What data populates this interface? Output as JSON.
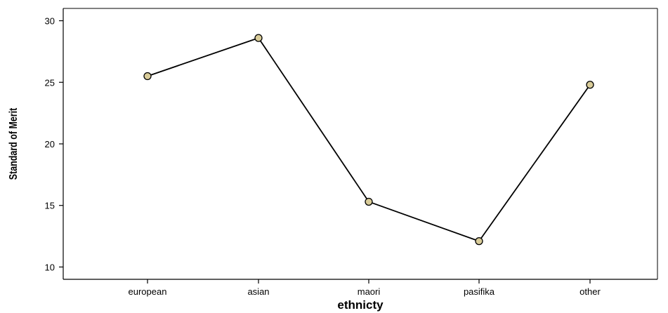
{
  "chart_data": {
    "type": "line",
    "categories": [
      "european",
      "asian",
      "maori",
      "pasifika",
      "other"
    ],
    "series": [
      {
        "values": [
          25.5,
          28.6,
          15.3,
          12.1,
          24.8
        ]
      }
    ],
    "xlabel": "ethnicty",
    "ylabel": "Standard of Merit",
    "ylim": [
      9,
      31
    ],
    "yticks": [
      10,
      15,
      20,
      25,
      30
    ],
    "grid": false,
    "colors": {
      "line": "#000000",
      "marker_fill": "#d9cc99",
      "marker_stroke": "#000000"
    }
  }
}
